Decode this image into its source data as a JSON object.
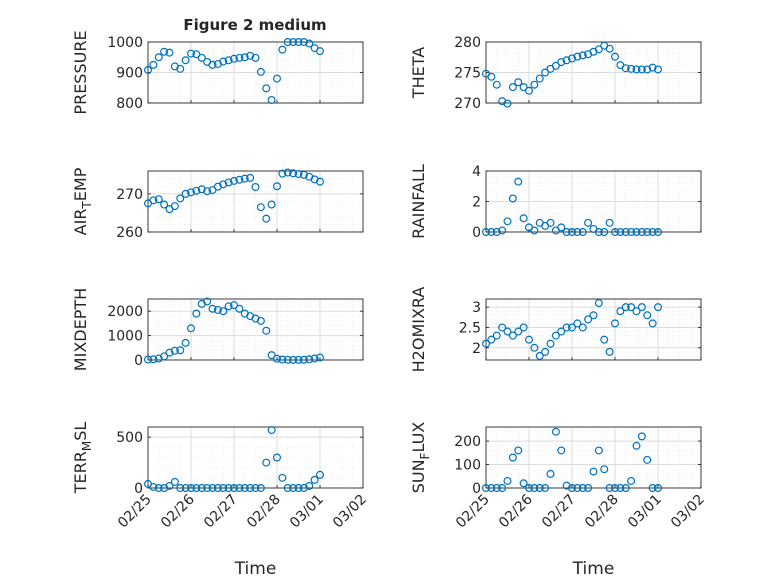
{
  "window": {
    "title": "Figure 2 medium"
  },
  "colors": {
    "marker": "#0072BD",
    "axis": "#262626",
    "grid": "#dcdcdc",
    "minor_grid": "#ececec"
  },
  "chart_data": [
    {
      "type": "scatter",
      "title": "Figure 2 medium",
      "ylabel": "PRESSURE",
      "ylim": [
        800,
        1000
      ],
      "yticks": [
        800,
        900,
        1000
      ],
      "yticklabels": [
        "800",
        "900",
        "1000"
      ],
      "grid": true,
      "x": [
        "02/25 00:00",
        "02/25 03:00",
        "02/25 06:00",
        "02/25 09:00",
        "02/25 12:00",
        "02/25 15:00",
        "02/25 18:00",
        "02/25 21:00",
        "02/26 00:00",
        "02/26 03:00",
        "02/26 06:00",
        "02/26 09:00",
        "02/26 12:00",
        "02/26 15:00",
        "02/26 18:00",
        "02/26 21:00",
        "02/27 00:00",
        "02/27 03:00",
        "02/27 06:00",
        "02/27 09:00",
        "02/27 12:00",
        "02/27 15:00",
        "02/27 18:00",
        "02/27 21:00",
        "02/28 00:00",
        "02/28 03:00",
        "02/28 06:00",
        "02/28 09:00",
        "02/28 12:00",
        "02/28 15:00",
        "02/28 18:00",
        "02/28 21:00",
        "03/01 00:00"
      ],
      "values": [
        908,
        925,
        950,
        968,
        965,
        920,
        912,
        940,
        962,
        960,
        948,
        935,
        925,
        928,
        936,
        940,
        945,
        948,
        950,
        955,
        948,
        902,
        848,
        810,
        880,
        975,
        1000,
        1000,
        1000,
        1000,
        995,
        980,
        970
      ]
    },
    {
      "type": "scatter",
      "ylabel": "THETA",
      "ylim": [
        270,
        280
      ],
      "yticks": [
        270,
        275,
        280
      ],
      "yticklabels": [
        "270",
        "275",
        "280"
      ],
      "grid": true,
      "x": [
        "02/25 00:00",
        "02/25 03:00",
        "02/25 06:00",
        "02/25 09:00",
        "02/25 12:00",
        "02/25 15:00",
        "02/25 18:00",
        "02/25 21:00",
        "02/26 00:00",
        "02/26 03:00",
        "02/26 06:00",
        "02/26 09:00",
        "02/26 12:00",
        "02/26 15:00",
        "02/26 18:00",
        "02/26 21:00",
        "02/27 00:00",
        "02/27 03:00",
        "02/27 06:00",
        "02/27 09:00",
        "02/27 12:00",
        "02/27 15:00",
        "02/27 18:00",
        "02/27 21:00",
        "02/28 00:00",
        "02/28 03:00",
        "02/28 06:00",
        "02/28 09:00",
        "02/28 12:00",
        "02/28 15:00",
        "02/28 18:00",
        "02/28 21:00",
        "03/01 00:00"
      ],
      "values": [
        274.8,
        274.3,
        273.0,
        270.3,
        269.9,
        272.6,
        273.4,
        272.6,
        272.0,
        273.0,
        274.0,
        275.0,
        275.6,
        276.1,
        276.7,
        277.0,
        277.3,
        277.6,
        277.8,
        278.0,
        278.4,
        278.8,
        279.4,
        278.9,
        277.6,
        276.2,
        275.7,
        275.6,
        275.5,
        275.5,
        275.5,
        275.8,
        275.5
      ]
    },
    {
      "type": "scatter",
      "ylabel": "AIR_TEMP",
      "ylim": [
        260,
        276
      ],
      "yticks": [
        260,
        270
      ],
      "yticklabels": [
        "260",
        "270"
      ],
      "grid": true,
      "x": [
        "02/25 00:00",
        "02/25 03:00",
        "02/25 06:00",
        "02/25 09:00",
        "02/25 12:00",
        "02/25 15:00",
        "02/25 18:00",
        "02/25 21:00",
        "02/26 00:00",
        "02/26 03:00",
        "02/26 06:00",
        "02/26 09:00",
        "02/26 12:00",
        "02/26 15:00",
        "02/26 18:00",
        "02/26 21:00",
        "02/27 00:00",
        "02/27 03:00",
        "02/27 06:00",
        "02/27 09:00",
        "02/27 12:00",
        "02/27 15:00",
        "02/27 18:00",
        "02/27 21:00",
        "02/28 00:00",
        "02/28 03:00",
        "02/28 06:00",
        "02/28 09:00",
        "02/28 12:00",
        "02/28 15:00",
        "02/28 18:00",
        "02/28 21:00",
        "03/01 00:00"
      ],
      "values": [
        267.5,
        268.3,
        268.6,
        267.2,
        266.0,
        266.8,
        268.8,
        270.0,
        270.4,
        270.8,
        271.2,
        270.7,
        271.0,
        271.9,
        272.5,
        273.0,
        273.4,
        273.7,
        274.0,
        274.2,
        271.8,
        266.5,
        263.5,
        267.2,
        272.0,
        275.3,
        275.6,
        275.4,
        275.2,
        275.0,
        274.5,
        273.8,
        273.2
      ]
    },
    {
      "type": "scatter",
      "ylabel": "RAINFALL",
      "ylim": [
        0,
        4
      ],
      "yticks": [
        0,
        2,
        4
      ],
      "yticklabels": [
        "0",
        "2",
        "4"
      ],
      "grid": true,
      "x": [
        "02/25 00:00",
        "02/25 03:00",
        "02/25 06:00",
        "02/25 09:00",
        "02/25 12:00",
        "02/25 15:00",
        "02/25 18:00",
        "02/25 21:00",
        "02/26 00:00",
        "02/26 03:00",
        "02/26 06:00",
        "02/26 09:00",
        "02/26 12:00",
        "02/26 15:00",
        "02/26 18:00",
        "02/26 21:00",
        "02/27 00:00",
        "02/27 03:00",
        "02/27 06:00",
        "02/27 09:00",
        "02/27 12:00",
        "02/27 15:00",
        "02/27 18:00",
        "02/27 21:00",
        "02/28 00:00",
        "02/28 03:00",
        "02/28 06:00",
        "02/28 09:00",
        "02/28 12:00",
        "02/28 15:00",
        "02/28 18:00",
        "02/28 21:00",
        "03/01 00:00"
      ],
      "values": [
        0,
        0,
        0,
        0.1,
        0.7,
        2.2,
        3.3,
        0.9,
        0.3,
        0.1,
        0.6,
        0.4,
        0.6,
        0.1,
        0.3,
        0,
        0,
        0,
        0,
        0.6,
        0.2,
        0,
        0,
        0.6,
        0,
        0,
        0,
        0,
        0,
        0,
        0,
        0,
        0
      ]
    },
    {
      "type": "scatter",
      "ylabel": "MIXDEPTH",
      "ylim": [
        0,
        2500
      ],
      "yticks": [
        0,
        1000,
        2000
      ],
      "yticklabels": [
        "0",
        "1000",
        "2000"
      ],
      "grid": true,
      "x": [
        "02/25 00:00",
        "02/25 03:00",
        "02/25 06:00",
        "02/25 09:00",
        "02/25 12:00",
        "02/25 15:00",
        "02/25 18:00",
        "02/25 21:00",
        "02/26 00:00",
        "02/26 03:00",
        "02/26 06:00",
        "02/26 09:00",
        "02/26 12:00",
        "02/26 15:00",
        "02/26 18:00",
        "02/26 21:00",
        "02/27 00:00",
        "02/27 03:00",
        "02/27 06:00",
        "02/27 09:00",
        "02/27 12:00",
        "02/27 15:00",
        "02/27 18:00",
        "02/27 21:00",
        "02/28 00:00",
        "02/28 03:00",
        "02/28 06:00",
        "02/28 09:00",
        "02/28 12:00",
        "02/28 15:00",
        "02/28 18:00",
        "02/28 21:00",
        "03/01 00:00"
      ],
      "values": [
        20,
        30,
        60,
        150,
        300,
        380,
        400,
        700,
        1300,
        1900,
        2300,
        2400,
        2100,
        2050,
        2000,
        2200,
        2250,
        2100,
        1900,
        1800,
        1700,
        1600,
        1200,
        200,
        50,
        20,
        10,
        5,
        5,
        10,
        30,
        60,
        100
      ]
    },
    {
      "type": "scatter",
      "ylabel": "H2OMIXRA",
      "ylim": [
        1.7,
        3.2
      ],
      "yticks": [
        2,
        2.5,
        3
      ],
      "yticklabels": [
        "2",
        "2.5",
        "3"
      ],
      "grid": true,
      "x": [
        "02/25 00:00",
        "02/25 03:00",
        "02/25 06:00",
        "02/25 09:00",
        "02/25 12:00",
        "02/25 15:00",
        "02/25 18:00",
        "02/25 21:00",
        "02/26 00:00",
        "02/26 03:00",
        "02/26 06:00",
        "02/26 09:00",
        "02/26 12:00",
        "02/26 15:00",
        "02/26 18:00",
        "02/26 21:00",
        "02/27 00:00",
        "02/27 03:00",
        "02/27 06:00",
        "02/27 09:00",
        "02/27 12:00",
        "02/27 15:00",
        "02/27 18:00",
        "02/27 21:00",
        "02/28 00:00",
        "02/28 03:00",
        "02/28 06:00",
        "02/28 09:00",
        "02/28 12:00",
        "02/28 15:00",
        "02/28 18:00",
        "02/28 21:00",
        "03/01 00:00"
      ],
      "values": [
        2.1,
        2.2,
        2.3,
        2.5,
        2.4,
        2.3,
        2.4,
        2.5,
        2.2,
        2.0,
        1.8,
        1.9,
        2.1,
        2.3,
        2.4,
        2.5,
        2.5,
        2.6,
        2.5,
        2.7,
        2.8,
        3.1,
        2.2,
        1.9,
        2.6,
        2.9,
        3.0,
        3.0,
        2.9,
        3.0,
        2.8,
        2.6,
        3.0
      ]
    },
    {
      "type": "scatter",
      "ylabel": "TERR_MSL",
      "ylim": [
        0,
        600
      ],
      "yticks": [
        0,
        500
      ],
      "yticklabels": [
        "0",
        "500"
      ],
      "grid": true,
      "x": [
        "02/25 00:00",
        "02/25 03:00",
        "02/25 06:00",
        "02/25 09:00",
        "02/25 12:00",
        "02/25 15:00",
        "02/25 18:00",
        "02/25 21:00",
        "02/26 00:00",
        "02/26 03:00",
        "02/26 06:00",
        "02/26 09:00",
        "02/26 12:00",
        "02/26 15:00",
        "02/26 18:00",
        "02/26 21:00",
        "02/27 00:00",
        "02/27 03:00",
        "02/27 06:00",
        "02/27 09:00",
        "02/27 12:00",
        "02/27 15:00",
        "02/27 18:00",
        "02/27 21:00",
        "02/28 00:00",
        "02/28 03:00",
        "02/28 06:00",
        "02/28 09:00",
        "02/28 12:00",
        "02/28 15:00",
        "02/28 18:00",
        "02/28 21:00",
        "03/01 00:00"
      ],
      "values": [
        40,
        10,
        0,
        0,
        20,
        60,
        0,
        0,
        0,
        0,
        0,
        0,
        0,
        0,
        0,
        0,
        0,
        0,
        0,
        0,
        0,
        0,
        250,
        570,
        300,
        100,
        0,
        0,
        0,
        0,
        20,
        80,
        130
      ]
    },
    {
      "type": "scatter",
      "ylabel": "SUN_FLUX",
      "ylim": [
        0,
        260
      ],
      "yticks": [
        0,
        100,
        200
      ],
      "yticklabels": [
        "0",
        "100",
        "200"
      ],
      "grid": true,
      "x": [
        "02/25 00:00",
        "02/25 03:00",
        "02/25 06:00",
        "02/25 09:00",
        "02/25 12:00",
        "02/25 15:00",
        "02/25 18:00",
        "02/25 21:00",
        "02/26 00:00",
        "02/26 03:00",
        "02/26 06:00",
        "02/26 09:00",
        "02/26 12:00",
        "02/26 15:00",
        "02/26 18:00",
        "02/26 21:00",
        "02/27 00:00",
        "02/27 03:00",
        "02/27 06:00",
        "02/27 09:00",
        "02/27 12:00",
        "02/27 15:00",
        "02/27 18:00",
        "02/27 21:00",
        "02/28 00:00",
        "02/28 03:00",
        "02/28 06:00",
        "02/28 09:00",
        "02/28 12:00",
        "02/28 15:00",
        "02/28 18:00",
        "02/28 21:00",
        "03/01 00:00"
      ],
      "values": [
        0,
        0,
        0,
        0,
        30,
        130,
        160,
        20,
        0,
        0,
        0,
        0,
        60,
        240,
        160,
        10,
        0,
        0,
        0,
        0,
        70,
        160,
        80,
        0,
        0,
        0,
        0,
        30,
        180,
        220,
        120,
        0,
        0
      ]
    }
  ],
  "x_axis": {
    "label": "Time",
    "ticks": [
      "02/25",
      "02/26",
      "02/27",
      "02/28",
      "03/01",
      "03/02"
    ]
  }
}
